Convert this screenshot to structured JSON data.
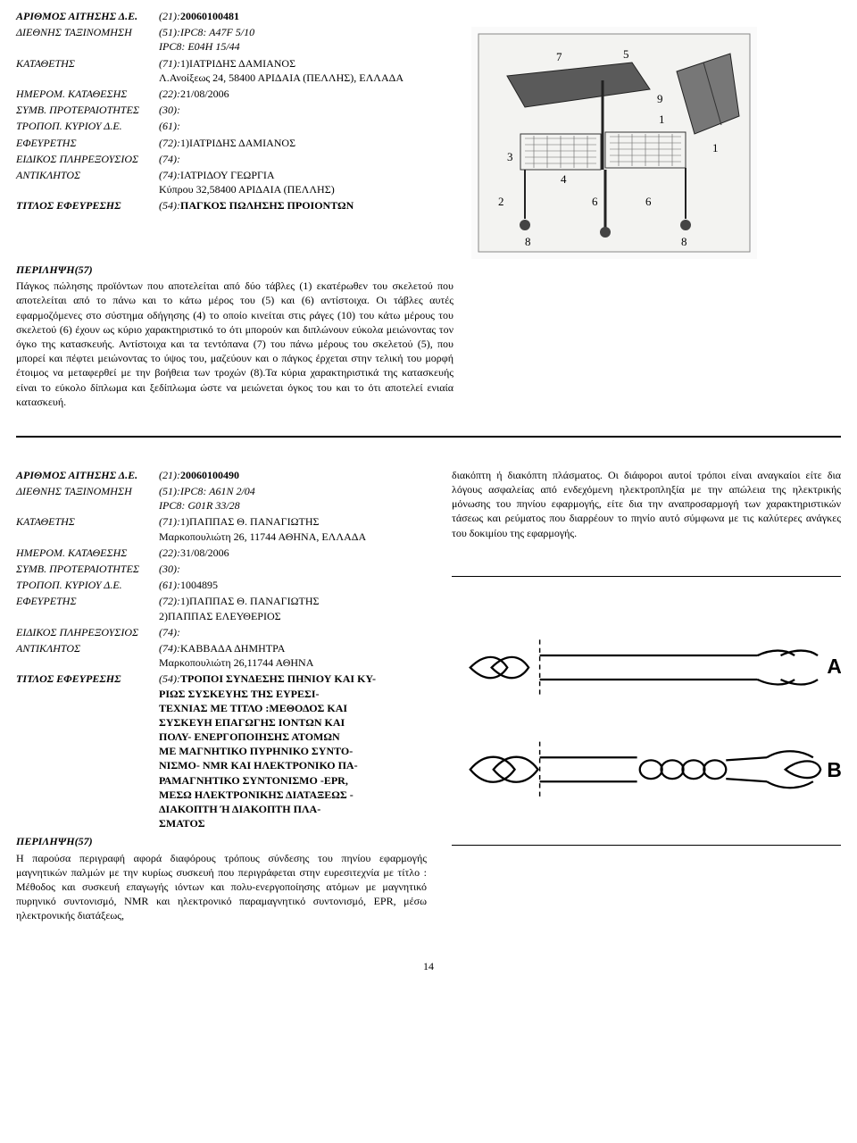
{
  "entry1": {
    "fields": [
      {
        "label": "ΑΡΙΘΜΟΣ ΑΙΤΗΣΗΣ Δ.Ε.",
        "label_bold": true,
        "code": "(21):",
        "value": "20060100481",
        "bold": true
      },
      {
        "label": "ΔΙΕΘΝΗΣ ΤΑΞΙΝΟΜΗΣΗ",
        "code": "(51):",
        "value": "IPC8: A47F  5/10\nIPC8: E04H  15/44",
        "ital": true
      },
      {
        "label": "ΚΑΤΑΘΕΤΗΣ",
        "code": "(71):",
        "value": "1)ΙΑΤΡΙΔΗΣ  ΔΑΜΙΑΝΟΣ\nΛ.Ανοίξεως 24, 58400 ΑΡΙΔΑΙΑ (ΠΕΛΛΗΣ), ΕΛΛΑΔΑ"
      },
      {
        "label": "ΗΜΕΡΟΜ. ΚΑΤΑΘΕΣΗΣ",
        "code": "(22):",
        "value": "21/08/2006"
      },
      {
        "label": "ΣΥΜΒ. ΠΡΟΤΕΡΑΙΟΤΗΤΕΣ",
        "code": "(30):",
        "value": ""
      },
      {
        "label": "ΤΡΟΠΟΠ. ΚΥΡΙΟΥ Δ.Ε.",
        "code": "(61):",
        "value": ""
      },
      {
        "label": "ΕΦΕΥΡΕΤΗΣ",
        "code": "(72):",
        "value": "1)ΙΑΤΡΙΔΗΣ  ΔΑΜΙΑΝΟΣ"
      },
      {
        "label": "ΕΙΔΙΚΟΣ ΠΛΗΡΕΞΟΥΣΙΟΣ",
        "code": "(74):",
        "value": ""
      },
      {
        "label": "ΑΝΤΙΚΛΗΤΟΣ",
        "code": "(74):",
        "value": "ΙΑΤΡΙΔΟΥ ΓΕΩΡΓΙΑ\nΚύπρου 32,58400 ΑΡΙΔΑΙΑ (ΠΕΛΛΗΣ)"
      },
      {
        "label": "ΤΙΤΛΟΣ ΕΦΕΥΡΕΣΗΣ",
        "label_bold": true,
        "code": "(54):",
        "value": "ΠΑΓΚΟΣ ΠΩΛΗΣΗΣ ΠΡΟΙΟΝΤΩΝ",
        "bold": true
      }
    ],
    "abstract_label": "ΠΕΡΙΛΗΨΗ(57)",
    "abstract": "Πάγκος πώλησης προϊόντων που αποτελείται από δύο τάβλες (1) εκατέρωθεν του σκελετού που αποτελείται από το πάνω και το κάτω μέρος του (5) και (6) αντίστοιχα. Οι τάβλες αυτές εφαρμοζόμενες στο σύστημα οδήγησης (4) το οποίο κινείται στις ράγες (10) του κάτω μέρους του σκελετού (6) έχουν ως κύριο χαρακτηριστικό το ότι μπορούν και διπλώνουν εύκολα μειώνοντας τον όγκο της κατασκευής. Αντίστοιχα και τα τεντόπανα (7) του πάνω μέρους του σκελετού (5), που μπορεί και πέφτει μειώνοντας το ύψος του, μαζεύουν και ο πάγκος έρχεται στην τελική του μορφή έτοιμος να μεταφερθεί με την βοήθεια των τροχών (8).Τα κύρια χαρακτηριστικά της κατασκευής είναι το εύκολο δίπλωμα και ξεδίπλωμα ώστε να μειώνεται όγκος του και το ότι αποτελεί ενιαία κατασκευή."
  },
  "entry2": {
    "fields": [
      {
        "label": "ΑΡΙΘΜΟΣ ΑΙΤΗΣΗΣ Δ.Ε.",
        "label_bold": true,
        "code": "(21):",
        "value": "20060100490",
        "bold": true
      },
      {
        "label": "ΔΙΕΘΝΗΣ ΤΑΞΙΝΟΜΗΣΗ",
        "code": "(51):",
        "value": "IPC8: A61N   2/04\nIPC8: G01R  33/28",
        "ital": true
      },
      {
        "label": "ΚΑΤΑΘΕΤΗΣ",
        "code": "(71):",
        "value": "1)ΠΑΠΠΑΣ Θ. ΠΑΝΑΓΙΩΤΗΣ\nΜαρκοπουλιώτη 26, 11744 ΑΘΗΝΑ, ΕΛΛΑΔΑ"
      },
      {
        "label": "ΗΜΕΡΟΜ. ΚΑΤΑΘΕΣΗΣ",
        "code": "(22):",
        "value": "31/08/2006"
      },
      {
        "label": "ΣΥΜΒ. ΠΡΟΤΕΡΑΙΟΤΗΤΕΣ",
        "code": "(30):",
        "value": ""
      },
      {
        "label": "ΤΡΟΠΟΠ. ΚΥΡΙΟΥ Δ.Ε.",
        "code": "(61):",
        "value": "1004895"
      },
      {
        "label": "ΕΦΕΥΡΕΤΗΣ",
        "code": "(72):",
        "value": "1)ΠΑΠΠΑΣ Θ. ΠΑΝΑΓΙΩΤΗΣ\n2)ΠΑΠΠΑΣ  ΕΛΕΥΘΕΡΙΟΣ"
      },
      {
        "label": "ΕΙΔΙΚΟΣ ΠΛΗΡΕΞΟΥΣΙΟΣ",
        "code": "(74):",
        "value": ""
      },
      {
        "label": "ΑΝΤΙΚΛΗΤΟΣ",
        "code": "(74):",
        "value": "ΚΑΒΒΑΔΑ ΔΗΜΗΤΡΑ\nΜαρκοπουλιώτη 26,11744 ΑΘΗΝΑ"
      },
      {
        "label": "ΤΙΤΛΟΣ ΕΦΕΥΡΕΣΗΣ",
        "label_bold": true,
        "code": "(54):",
        "value": "ΤΡΟΠΟΙ ΣΥΝΔΕΣΗΣ ΠΗΝΙΟΥ ΚΑΙ ΚΥ-\nΡΙΩΣ   ΣΥΣΚΕΥΗΣ   ΤΗΣ   ΕΥΡΕΣΙ-\nΤΕΧΝΙΑΣ ΜΕ ΤΙΤΛΟ :ΜΕΘΟΔΟΣ ΚΑΙ\nΣΥΣΚΕΥΗ ΕΠΑΓΩΓΗΣ ΙΟΝΤΩΝ ΚΑΙ\nΠΟΛΥ- ΕΝΕΡΓΟΠΟΙΗΣΗΣ ΑΤΟΜΩΝ\nΜΕ ΜΑΓΝΗΤΙΚΟ ΠΥΡΗΝΙΚΟ ΣΥΝΤΟ-\nΝΙΣΜΟ- NMR ΚΑΙ ΗΛΕΚΤΡΟΝΙΚΟ ΠΑ-\nΡΑΜΑΓΝΗΤΙΚΟ ΣΥΝΤΟΝΙΣΜΟ -EPR,\nΜΕΣΩ ΗΛΕΚΤΡΟΝΙΚΗΣ ΔΙΑΤΑΞΕΩΣ -\nΔΙΑΚΟΠΤΗ    Ή    ΔΙΑΚΟΠΤΗ   ΠΛΑ-\nΣΜΑΤΟΣ",
        "bold": true
      }
    ],
    "abstract_label": "ΠΕΡΙΛΗΨΗ(57)",
    "abstract": "Η παρούσα περιγραφή αφορά διαφόρους τρόπους σύνδεσης του πηνίου εφαρμογής μαγνητικών παλμών με την κυρίως συσκευή που περιγράφεται στην ευρεσιτεχνία με τίτλο : Μέθοδος και συσκευή επαγωγής ιόντων και πολυ-ενεργοποίησης ατόμων με μαγνητικό πυρηνικό συντονισμό, NMR και ηλεκτρονικό παραμαγνητικό συντονισμό, EPR, μέσω ηλεκτρονικής διατάξεως,",
    "continuation": "διακόπτη ή διακόπτη πλάσματος. Οι διάφοροι αυτοί τρόποι είναι αναγκαίοι είτε δια λόγους ασφαλείας από ενδεχόμενη ηλεκτροπληξία με την απώλεια της ηλεκτρικής μόνωσης του πηνίου εφαρμογής, είτε δια την αναπροσαρμογή των χαρακτηριστικών τάσεως και ρεύματος που διαρρέουν το πηνίο αυτό σύμφωνα με τις καλύτερες ανάγκες του δοκιμίου της εφαρμογής.",
    "figA": "A",
    "figB": "B"
  },
  "pagenum": "14"
}
